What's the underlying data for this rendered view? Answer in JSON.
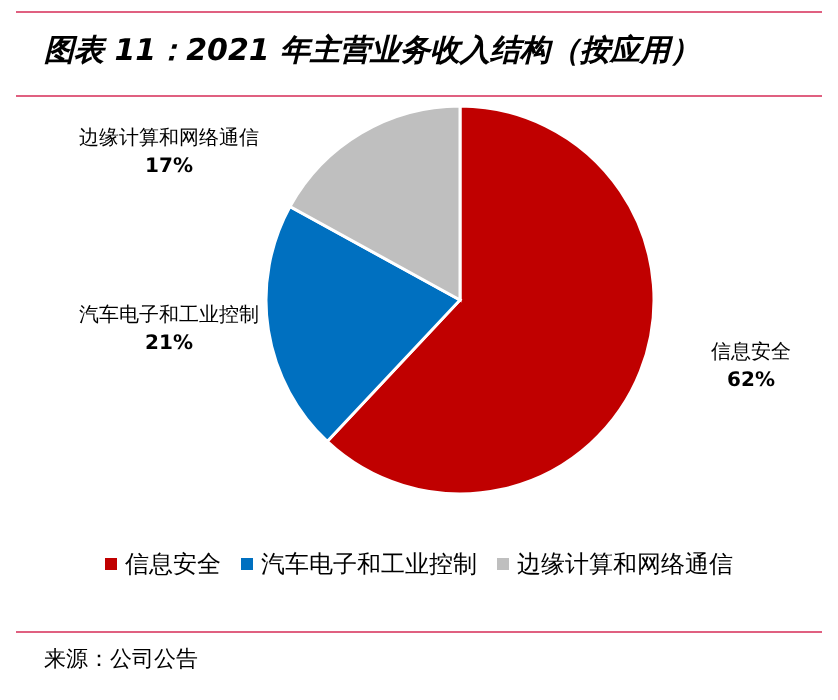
{
  "chart_data": {
    "type": "pie",
    "title": "图表 11：2021 年主营业务收入结构（按应用）",
    "categories": [
      "信息安全",
      "汽车电子和工业控制",
      "边缘计算和网络通信"
    ],
    "values": [
      62,
      21,
      17
    ],
    "colors": [
      "#c00000",
      "#0070c0",
      "#bfbfbf"
    ],
    "value_labels": [
      "62%",
      "21%",
      "17%"
    ],
    "legend": "bottom",
    "annotations": [
      "来源：公司公告"
    ]
  }
}
